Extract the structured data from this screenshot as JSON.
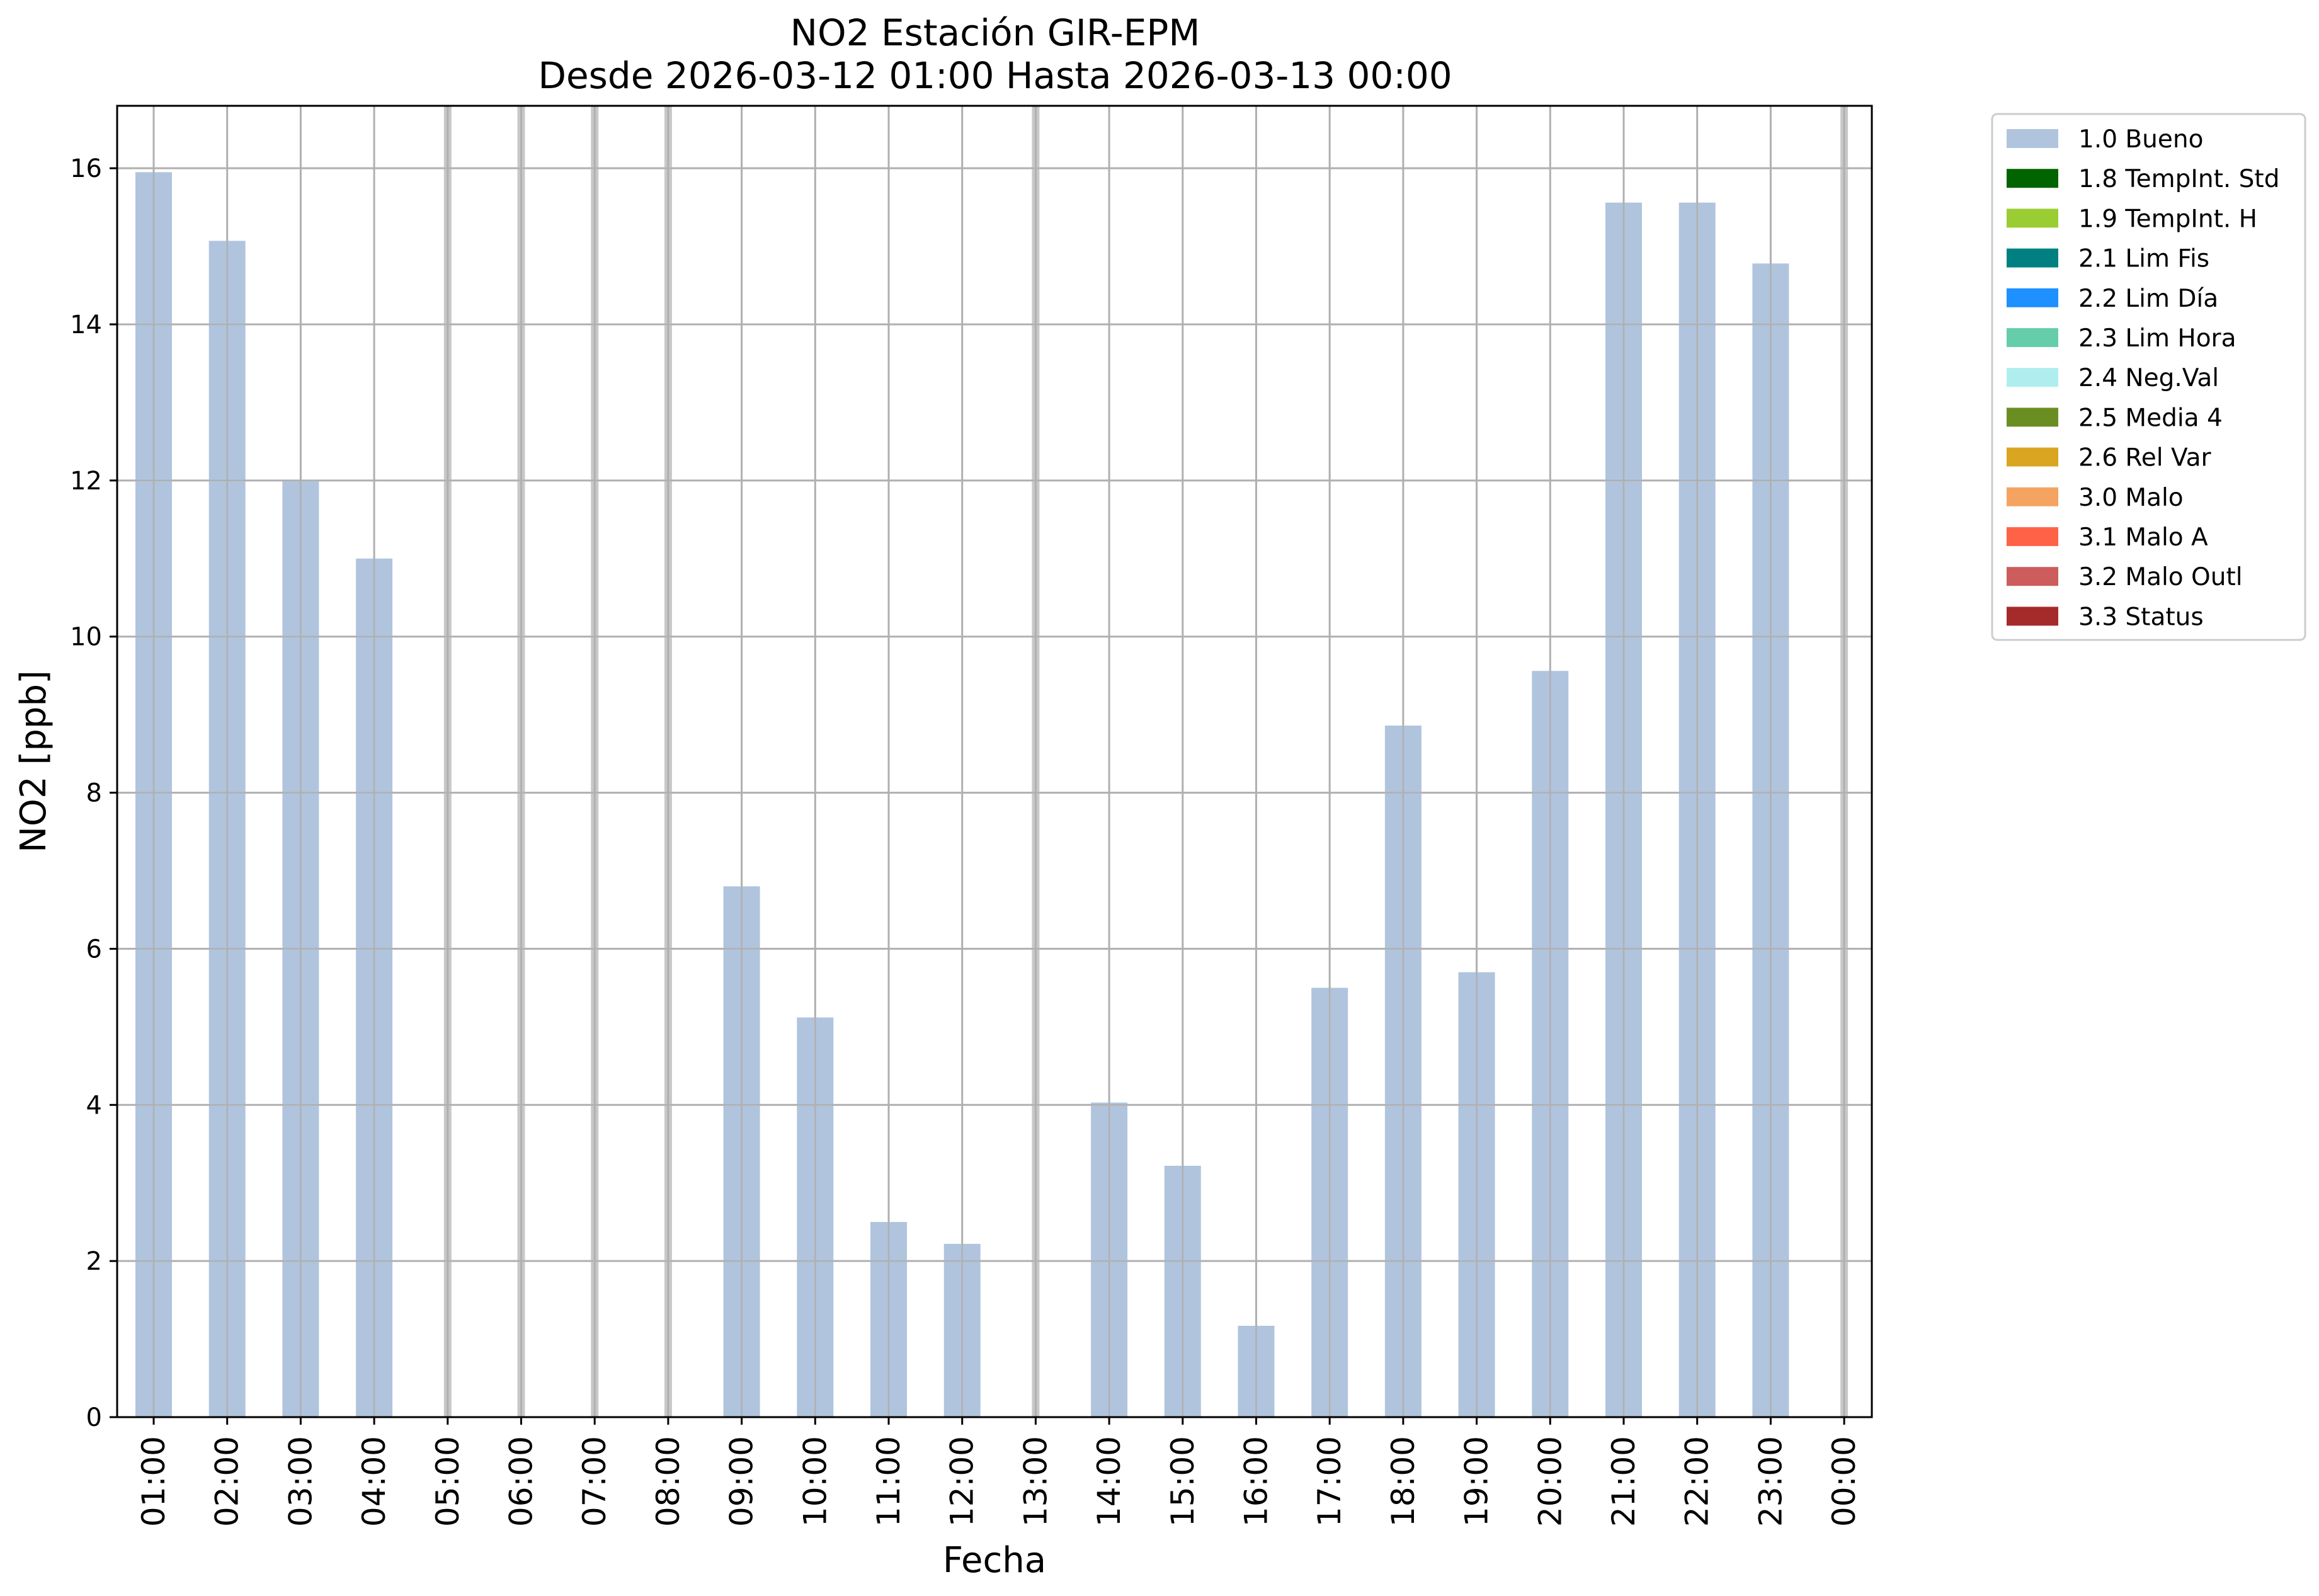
{
  "chart_data": {
    "type": "bar",
    "title": "NO2 Estación GIR-EPM",
    "subtitle": "Desde 2026-03-12 01:00 Hasta 2026-03-13 00:00",
    "xlabel": "Fecha",
    "ylabel": "NO2 [ppb]",
    "ylim": [
      0,
      16.8
    ],
    "yticks": [
      0,
      2,
      4,
      6,
      8,
      10,
      12,
      14,
      16
    ],
    "grid": true,
    "legend_position": "outside-top-right",
    "categories": [
      "01:00",
      "02:00",
      "03:00",
      "04:00",
      "05:00",
      "06:00",
      "07:00",
      "08:00",
      "09:00",
      "10:00",
      "11:00",
      "12:00",
      "13:00",
      "14:00",
      "15:00",
      "16:00",
      "17:00",
      "18:00",
      "19:00",
      "20:00",
      "21:00",
      "22:00",
      "23:00",
      "00:00"
    ],
    "missing_categories": [
      "05:00",
      "06:00",
      "07:00",
      "08:00",
      "13:00",
      "00:00"
    ],
    "series": [
      {
        "name": "1.0 Bueno",
        "color": "#b0c4de",
        "values": [
          15.95,
          15.07,
          12.0,
          11.0,
          null,
          null,
          null,
          null,
          6.8,
          5.12,
          2.5,
          2.22,
          null,
          4.03,
          3.22,
          1.17,
          5.5,
          8.86,
          5.7,
          9.56,
          15.56,
          15.56,
          14.78,
          null
        ]
      }
    ],
    "legend": [
      {
        "label": "1.0 Bueno",
        "color": "#b0c4de"
      },
      {
        "label": "1.8 TempInt. Std",
        "color": "#006400"
      },
      {
        "label": "1.9 TempInt. H",
        "color": "#9acd32"
      },
      {
        "label": "2.1 Lim Fis",
        "color": "#008080"
      },
      {
        "label": "2.2 Lim Día",
        "color": "#1e90ff"
      },
      {
        "label": "2.3 Lim Hora",
        "color": "#66cdaa"
      },
      {
        "label": "2.4 Neg.Val",
        "color": "#afeeee"
      },
      {
        "label": "2.5 Media 4",
        "color": "#6b8e23"
      },
      {
        "label": "2.6 Rel Var",
        "color": "#daa520"
      },
      {
        "label": "3.0 Malo",
        "color": "#f4a460"
      },
      {
        "label": "3.1 Malo A",
        "color": "#ff6347"
      },
      {
        "label": "3.2 Malo Outl",
        "color": "#cd5c5c"
      },
      {
        "label": "3.3 Status",
        "color": "#a52a2a"
      }
    ],
    "grid_color": "#b0b0b0",
    "missing_marker_color": "#c8c8c8"
  }
}
